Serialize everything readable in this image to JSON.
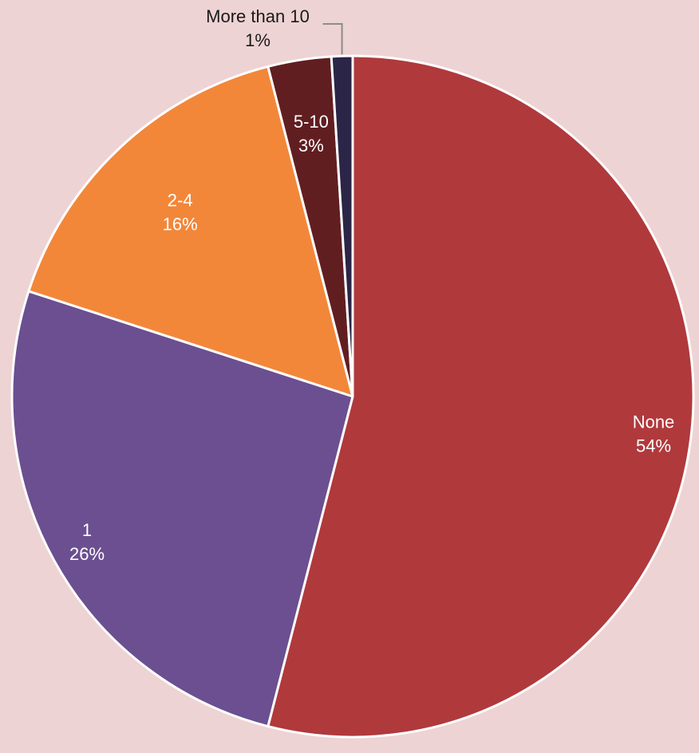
{
  "chart_data": {
    "type": "pie",
    "title": "",
    "background_color": "#EED3D4",
    "start_angle_deg": 0,
    "direction": "clockwise",
    "slices": [
      {
        "category": "None",
        "value": 54,
        "percent_label": "54%",
        "color": "#B0393C",
        "label_color": "#FFFFFF"
      },
      {
        "category": "1",
        "value": 26,
        "percent_label": "26%",
        "color": "#6B4F91",
        "label_color": "#FFFFFF"
      },
      {
        "category": "2-4",
        "value": 16,
        "percent_label": "16%",
        "color": "#F2873A",
        "label_color": "#FFFFFF"
      },
      {
        "category": "5-10",
        "value": 3,
        "percent_label": "3%",
        "color": "#611E21",
        "label_color": "#FFFFFF"
      },
      {
        "category": "More than 10",
        "value": 1,
        "percent_label": "1%",
        "color": "#2B2547",
        "label_color": "#1A1A1A"
      }
    ]
  }
}
